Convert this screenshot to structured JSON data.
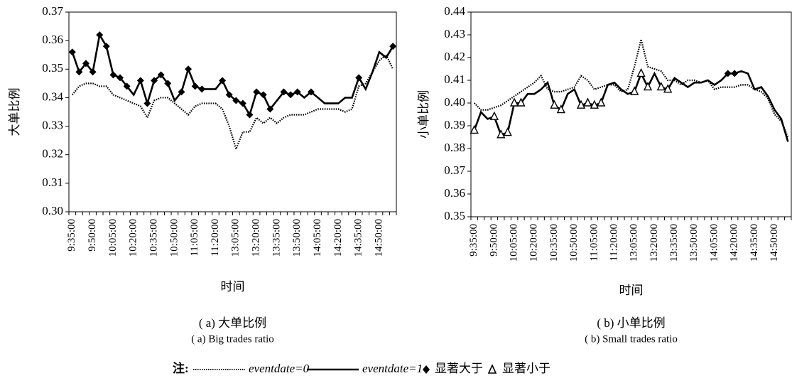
{
  "note": "注:",
  "chart_data": [
    {
      "type": "line",
      "title": "( a) 大单比例",
      "subtitle": "( a)  Big trades ratio",
      "xlabel": "时间",
      "ylabel": "大单比例",
      "categories": [
        "9:35:00",
        null,
        null,
        "9:50:00",
        null,
        null,
        "10:05:00",
        null,
        null,
        "10:20:00",
        null,
        null,
        "10:35:00",
        null,
        null,
        "10:50:00",
        null,
        null,
        "11:05:00",
        null,
        null,
        "11:20:00",
        null,
        null,
        "13:05:00",
        null,
        null,
        "13:20:00",
        null,
        null,
        "13:35:00",
        null,
        null,
        "13:50:00",
        null,
        null,
        "14:05:00",
        null,
        null,
        "14:20:00",
        null,
        null,
        "14:35:00",
        null,
        null,
        "14:50:00",
        null,
        null
      ],
      "ylim": [
        0.3,
        0.37
      ],
      "yticks": [
        {
          "value": 0.3,
          "label": "0.30"
        },
        0.31,
        0.32,
        0.33,
        0.34,
        0.35,
        0.36,
        0.37
      ],
      "series": [
        {
          "name": "eventdate=0",
          "style": "dotted",
          "color": "#000000",
          "values": [
            0.341,
            0.344,
            0.345,
            0.345,
            0.344,
            0.344,
            0.341,
            0.34,
            0.339,
            0.338,
            0.337,
            0.333,
            0.339,
            0.34,
            0.34,
            0.338,
            0.336,
            0.334,
            0.337,
            0.338,
            0.338,
            0.338,
            0.336,
            0.33,
            0.322,
            0.328,
            0.328,
            0.333,
            0.331,
            0.333,
            0.331,
            0.333,
            0.334,
            0.334,
            0.334,
            0.335,
            0.336,
            0.336,
            0.336,
            0.336,
            0.335,
            0.336,
            0.344,
            0.345,
            0.349,
            0.353,
            0.355,
            0.35
          ]
        },
        {
          "name": "eventdate=1",
          "style": "solid",
          "color": "#000000",
          "values": [
            0.356,
            0.349,
            0.352,
            0.349,
            0.362,
            0.358,
            0.348,
            0.347,
            0.344,
            0.341,
            0.346,
            0.338,
            0.346,
            0.348,
            0.345,
            0.339,
            0.342,
            0.35,
            0.344,
            0.343,
            0.343,
            0.343,
            0.346,
            0.341,
            0.339,
            0.338,
            0.334,
            0.342,
            0.341,
            0.336,
            0.339,
            0.342,
            0.341,
            0.342,
            0.34,
            0.342,
            0.34,
            0.338,
            0.338,
            0.338,
            0.34,
            0.34,
            0.347,
            0.343,
            0.349,
            0.356,
            0.354,
            0.358
          ]
        },
        {
          "name": "显著大于",
          "style": "marker",
          "marker": "diamond",
          "color": "#000000",
          "values": [
            0.356,
            0.349,
            0.352,
            0.349,
            0.362,
            0.358,
            0.348,
            0.347,
            0.344,
            null,
            0.346,
            0.338,
            0.346,
            0.348,
            0.345,
            null,
            0.342,
            0.35,
            0.344,
            0.343,
            null,
            null,
            0.346,
            0.341,
            0.339,
            0.338,
            0.334,
            0.342,
            0.341,
            0.336,
            null,
            0.342,
            0.341,
            0.342,
            null,
            0.342,
            null,
            null,
            null,
            null,
            null,
            null,
            0.347,
            null,
            null,
            null,
            null,
            0.358
          ]
        }
      ]
    },
    {
      "type": "line",
      "title": "( b) 小单比例",
      "subtitle": "( b)  Small trades ratio",
      "xlabel": "时间",
      "ylabel": "小单比例",
      "categories": [
        "9:35:00",
        null,
        null,
        "9:50:00",
        null,
        null,
        "10:05:00",
        null,
        null,
        "10:20:00",
        null,
        null,
        "10:35:00",
        null,
        null,
        "10:50:00",
        null,
        null,
        "11:05:00",
        null,
        null,
        "11:20:00",
        null,
        null,
        "13:05:00",
        null,
        null,
        "13:20:00",
        null,
        null,
        "13:35:00",
        null,
        null,
        "13:50:00",
        null,
        null,
        "14:05:00",
        null,
        null,
        "14:20:00",
        null,
        null,
        "14:35:00",
        null,
        null,
        "14:50:00",
        null,
        null
      ],
      "ylim": [
        0.35,
        0.44
      ],
      "yticks": [
        0.35,
        0.36,
        0.37,
        0.38,
        0.39,
        {
          "value": 0.4,
          "label": "0.40"
        },
        0.41,
        0.42,
        0.43,
        0.44
      ],
      "series": [
        {
          "name": "eventdate=0",
          "style": "dotted",
          "color": "#000000",
          "values": [
            0.4,
            0.397,
            0.397,
            0.398,
            0.399,
            0.401,
            0.403,
            0.405,
            0.407,
            0.409,
            0.412,
            0.406,
            0.405,
            0.405,
            0.406,
            0.407,
            0.412,
            0.41,
            0.406,
            0.407,
            0.408,
            0.408,
            0.405,
            0.406,
            0.416,
            0.428,
            0.416,
            0.415,
            0.414,
            0.41,
            0.41,
            0.408,
            0.41,
            0.41,
            0.409,
            0.41,
            0.406,
            0.407,
            0.407,
            0.407,
            0.408,
            0.408,
            0.406,
            0.405,
            0.402,
            0.395,
            0.392,
            0.385
          ]
        },
        {
          "name": "eventdate=1",
          "style": "solid",
          "color": "#000000",
          "values": [
            0.388,
            0.396,
            0.393,
            0.394,
            0.386,
            0.387,
            0.4,
            0.4,
            0.404,
            0.404,
            0.406,
            0.409,
            0.399,
            0.397,
            0.404,
            0.406,
            0.399,
            0.4,
            0.399,
            0.4,
            0.408,
            0.409,
            0.406,
            0.404,
            0.405,
            0.413,
            0.407,
            0.413,
            0.407,
            0.406,
            0.411,
            0.409,
            0.407,
            0.409,
            0.409,
            0.41,
            0.408,
            0.41,
            0.413,
            0.413,
            0.414,
            0.413,
            0.406,
            0.407,
            0.403,
            0.397,
            0.393,
            0.383
          ]
        },
        {
          "name": "显著大于",
          "style": "marker",
          "marker": "diamond",
          "color": "#000000",
          "values": [
            null,
            null,
            null,
            null,
            null,
            null,
            null,
            null,
            null,
            null,
            null,
            null,
            null,
            null,
            null,
            null,
            null,
            null,
            null,
            null,
            null,
            null,
            null,
            null,
            null,
            null,
            null,
            null,
            null,
            null,
            null,
            null,
            null,
            null,
            null,
            null,
            null,
            null,
            0.413,
            0.413,
            null,
            null,
            null,
            null,
            null,
            null,
            null,
            null
          ]
        },
        {
          "name": "显著小于",
          "style": "marker",
          "marker": "triangle",
          "color": "#000000",
          "values": [
            0.388,
            null,
            null,
            0.394,
            0.386,
            0.387,
            0.4,
            0.4,
            null,
            null,
            null,
            null,
            0.399,
            0.397,
            null,
            null,
            0.399,
            0.4,
            0.399,
            0.4,
            null,
            null,
            null,
            null,
            0.405,
            0.413,
            0.407,
            null,
            0.407,
            0.406,
            null,
            null,
            null,
            null,
            null,
            null,
            null,
            null,
            null,
            null,
            null,
            null,
            null,
            null,
            null,
            null,
            null,
            null
          ]
        }
      ]
    }
  ]
}
